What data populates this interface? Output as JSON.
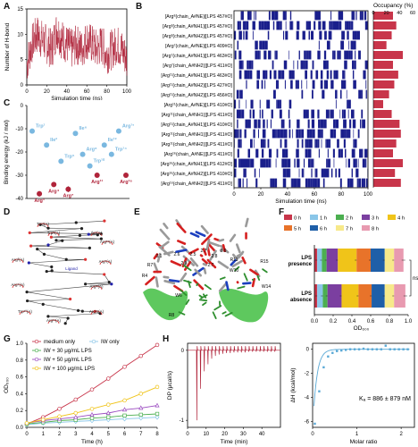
{
  "panels": {
    "A": "A",
    "B": "B",
    "C": "C",
    "D": "D",
    "E": "E",
    "F": "F",
    "G": "G",
    "H": "H"
  },
  "chart_data": [
    {
      "id": "A",
      "type": "line",
      "xlabel": "Simulation time (ns)",
      "ylabel": "Number of H-bond",
      "xlim": [
        0,
        100
      ],
      "ylim": [
        0,
        15
      ],
      "xticks": [
        "0",
        "20",
        "40",
        "60",
        "80",
        "100"
      ],
      "yticks": [
        "0",
        "5",
        "10",
        "15"
      ],
      "color": "#b0243a",
      "x": [
        0,
        5,
        10,
        15,
        20,
        25,
        30,
        35,
        40,
        45,
        50,
        55,
        60,
        65,
        70,
        75,
        80,
        85,
        90,
        95,
        100
      ],
      "y": [
        4,
        8,
        10,
        9,
        8,
        7,
        11,
        9,
        8,
        7,
        8,
        7,
        9,
        8,
        7,
        8,
        6,
        7,
        8,
        7,
        5
      ]
    },
    {
      "id": "B",
      "type": "heatmap",
      "xlabel": "Simulation time (ns)",
      "xlim": [
        0,
        100
      ],
      "xticks": [
        "0",
        "20",
        "40",
        "60",
        "80",
        "100"
      ],
      "legend_title": "Occupancy (%)",
      "legend_ticks": [
        "0",
        "20",
        "40",
        "60"
      ],
      "color": "#1a1f8c",
      "bar_color": "#c8354a",
      "rows": [
        {
          "label": "[Arg⁸(chain_A#NE)][LPS 457#O]",
          "occupancy": 30
        },
        {
          "label": "[Arg³(chain_A#NH1)][LPS 457#O]",
          "occupancy": 35
        },
        {
          "label": "[Arg³(chain_A#NH2)][LPS 457#O]",
          "occupancy": 28
        },
        {
          "label": "[Arg⁷(chain_A#NE)][LPS 409#O]",
          "occupancy": 20
        },
        {
          "label": "[Arg⁷(chain_A#NH1)][LPS 463#O]",
          "occupancy": 45
        },
        {
          "label": "[Arg⁷(chain_A#NH2)][LPS 411#O]",
          "occupancy": 30
        },
        {
          "label": "[Arg¹¹(chain_A#NH1)][LPS 463#O]",
          "occupancy": 38
        },
        {
          "label": "[Arg¹¹(chain_A#NH2)][LPS 427#O]",
          "occupancy": 32
        },
        {
          "label": "[Arg¹¹(chain_A#NH2)][LPS 456#O]",
          "occupancy": 24
        },
        {
          "label": "[Arg¹¹(chain_A#NE)][LPS 410#O]",
          "occupancy": 15
        },
        {
          "label": "[Arg¹¹(chain_A#NH1)][LPS 411#O]",
          "occupancy": 28
        },
        {
          "label": "[Arg¹¹(chain_A#NH1)][LPS 410#O]",
          "occupancy": 40
        },
        {
          "label": "[Arg¹¹(chain_A#NH1)][LPS 411#O]",
          "occupancy": 42
        },
        {
          "label": "[Arg¹¹(chain_A#NH2)][LPS 411#O]",
          "occupancy": 35
        },
        {
          "label": "[Arg¹⁶(chain_A#NE)][LPS 411#O]",
          "occupancy": 30
        },
        {
          "label": "[Arg¹⁶(chain_A#NH1)][LPS 412#O]",
          "occupancy": 45
        },
        {
          "label": "[Arg¹⁶(chain_A#NH2)][LPS 410#O]",
          "occupancy": 33
        },
        {
          "label": "[Arg¹⁶(chain_A#NH2)][LPS 411#O]",
          "occupancy": 42
        }
      ]
    },
    {
      "id": "C",
      "type": "scatter",
      "ylabel": "Binding energy (kJ / mol)",
      "ylim": [
        -40,
        0
      ],
      "yticks": [
        "0",
        "-10",
        "-20",
        "-30",
        "-40"
      ],
      "points": [
        {
          "label": "Trp¹",
          "value": -11,
          "error": 0.8,
          "color": "#7ab8e0"
        },
        {
          "label": "Arg³",
          "value": -38,
          "error": 1.2,
          "color": "#b0243a"
        },
        {
          "label": "Ile²",
          "value": -17,
          "error": 1.0,
          "color": "#7ab8e0"
        },
        {
          "label": "Arg⁴",
          "value": -34,
          "error": 1.0,
          "color": "#b0243a"
        },
        {
          "label": "Trp⁵",
          "value": -24,
          "error": 1.0,
          "color": "#7ab8e0"
        },
        {
          "label": "Arg⁷",
          "value": -36,
          "error": 1.3,
          "color": "#b0243a"
        },
        {
          "label": "Ile⁶",
          "value": -12,
          "error": 0.8,
          "color": "#7ab8e0"
        },
        {
          "label": "Arg⁸",
          "value": -21,
          "error": 1.0,
          "color": "#7ab8e0"
        },
        {
          "label": "Trp¹⁰",
          "value": -26,
          "error": 1.0,
          "color": "#7ab8e0"
        },
        {
          "label": "Arg¹¹",
          "value": -30,
          "error": 1.0,
          "color": "#b0243a"
        },
        {
          "label": "Ile¹²",
          "value": -17,
          "error": 0.8,
          "color": "#7ab8e0"
        },
        {
          "label": "Trp¹⁴",
          "value": -21,
          "error": 0.8,
          "color": "#7ab8e0"
        },
        {
          "label": "Arg¹⁵",
          "value": -11,
          "error": 0.8,
          "color": "#7ab8e0"
        },
        {
          "label": "Arg¹⁶",
          "value": -30,
          "error": 1.0,
          "color": "#b0243a"
        }
      ]
    },
    {
      "id": "F",
      "type": "bar",
      "orientation": "horizontal-stacked",
      "xlabel": "OD₆₀₀",
      "xlim": [
        0,
        1.0
      ],
      "xticks": [
        "0.0",
        "0.2",
        "0.4",
        "0.6",
        "0.8",
        "1.0"
      ],
      "categories": [
        "LPS presence",
        "LPS absence"
      ],
      "significance": "ns",
      "series": [
        {
          "name": "0 h",
          "color": "#c8354a",
          "values": [
            0.03,
            0.03
          ]
        },
        {
          "name": "1 h",
          "color": "#8ac6e8",
          "values": [
            0.05,
            0.06
          ]
        },
        {
          "name": "2 h",
          "color": "#4caf50",
          "values": [
            0.05,
            0.05
          ]
        },
        {
          "name": "3 h",
          "color": "#7b3fa0",
          "values": [
            0.12,
            0.15
          ]
        },
        {
          "name": "4 h",
          "color": "#f0c419",
          "values": [
            0.2,
            0.18
          ]
        },
        {
          "name": "5 h",
          "color": "#e8732a",
          "values": [
            0.15,
            0.14
          ]
        },
        {
          "name": "6 h",
          "color": "#1f5fa8",
          "values": [
            0.15,
            0.14
          ]
        },
        {
          "name": "7 h",
          "color": "#f7e98a",
          "values": [
            0.1,
            0.1
          ]
        },
        {
          "name": "8 h",
          "color": "#e89ab0",
          "values": [
            0.1,
            0.12
          ]
        }
      ]
    },
    {
      "id": "G",
      "type": "line",
      "xlabel": "Time (h)",
      "ylabel": "OD₆₀₀",
      "xlim": [
        0,
        8
      ],
      "ylim": [
        0,
        1.0
      ],
      "xticks": [
        "0",
        "1",
        "2",
        "3",
        "4",
        "5",
        "6",
        "7",
        "8"
      ],
      "yticks": [
        "0.0",
        "0.2",
        "0.4",
        "0.6",
        "0.8",
        "1.0"
      ],
      "x": [
        0,
        1,
        2,
        3,
        4,
        5,
        6,
        7,
        8
      ],
      "series": [
        {
          "name": "medium only",
          "color": "#c8354a",
          "marker": "circle",
          "values": [
            0.04,
            0.12,
            0.22,
            0.33,
            0.45,
            0.58,
            0.72,
            0.85,
            0.98
          ]
        },
        {
          "name": "IW only",
          "color": "#8ac6e8",
          "marker": "diamond",
          "values": [
            0.03,
            0.05,
            0.06,
            0.07,
            0.08,
            0.09,
            0.1,
            0.11,
            0.12
          ]
        },
        {
          "name": "IW + 30 μg/mL LPS",
          "color": "#4caf50",
          "marker": "square",
          "values": [
            0.04,
            0.06,
            0.08,
            0.09,
            0.11,
            0.12,
            0.14,
            0.15,
            0.16
          ]
        },
        {
          "name": "IW + 50 μg/mL LPS",
          "color": "#9b4bc0",
          "marker": "triangle",
          "values": [
            0.05,
            0.08,
            0.1,
            0.12,
            0.15,
            0.17,
            0.21,
            0.23,
            0.26
          ]
        },
        {
          "name": "IW + 100 μg/mL LPS",
          "color": "#f0c419",
          "marker": "circle",
          "values": [
            0.05,
            0.09,
            0.13,
            0.17,
            0.22,
            0.27,
            0.32,
            0.4,
            0.48
          ]
        }
      ]
    },
    {
      "id": "H1",
      "type": "line",
      "xlabel": "Time (min)",
      "ylabel": "DP (μcal/s)",
      "xlim": [
        0,
        50
      ],
      "ylim": [
        -1.1,
        0.1
      ],
      "xticks": [
        "0",
        "10",
        "20",
        "30",
        "40"
      ],
      "yticks": [
        "0",
        "-1"
      ],
      "color": "#b0243a",
      "injections": [
        5,
        7,
        9,
        11,
        13,
        15,
        17,
        19,
        21,
        23,
        25,
        27,
        29,
        31,
        33,
        35,
        37,
        39,
        41,
        43,
        45,
        47
      ],
      "peaks": [
        -1.0,
        -0.55,
        -0.3,
        -0.2,
        -0.12,
        -0.08,
        -0.06,
        -0.05,
        -0.04,
        -0.04,
        -0.03,
        -0.03,
        -0.03,
        -0.03,
        -0.02,
        -0.02,
        -0.02,
        -0.02,
        -0.02,
        -0.02,
        -0.02,
        -0.02
      ]
    },
    {
      "id": "H2",
      "type": "scatter",
      "xlabel": "Molar ratio",
      "ylabel": "ΔH (kcal/mol)",
      "xlim": [
        0,
        2.3
      ],
      "ylim": [
        -6.5,
        0.5
      ],
      "xticks": [
        "0",
        "1",
        "2"
      ],
      "yticks": [
        "0",
        "-2",
        "-4",
        "-6"
      ],
      "color": "#5aa9d6",
      "annotation": "Kₐ = 886 ± 879 nM",
      "x": [
        0.05,
        0.15,
        0.25,
        0.35,
        0.45,
        0.55,
        0.65,
        0.75,
        0.85,
        0.95,
        1.05,
        1.15,
        1.25,
        1.35,
        1.45,
        1.55,
        1.65,
        1.75,
        1.85,
        1.95,
        2.05,
        2.15
      ],
      "y": [
        -6.2,
        -3.5,
        -1.5,
        -0.6,
        -0.3,
        -0.15,
        -0.1,
        -0.05,
        0,
        0,
        0,
        0.05,
        0,
        0,
        0,
        0,
        0.3,
        0,
        0,
        0,
        0,
        0
      ]
    }
  ],
  "panelE": {
    "labels": [
      "R4",
      "R7",
      "R8",
      "W6",
      "W10",
      "R11",
      "W14",
      "R15",
      "3.1",
      "2.6",
      "2.5",
      "2.7",
      "2.8",
      "2.6",
      "2.9",
      "2.7"
    ]
  },
  "panelD": {
    "labels": [
      "Trp¹(A)",
      "Arg³(A)",
      "Arg⁴(A)",
      "Trp⁵(A)",
      "Ile⁶(A)",
      "Arg⁷(A)",
      "Arg⁸(A)",
      "Trp¹⁰(A)",
      "Arg¹¹(A)",
      "Arg¹⁵(A)",
      "Arg¹⁶(A)",
      "Ligand"
    ]
  }
}
